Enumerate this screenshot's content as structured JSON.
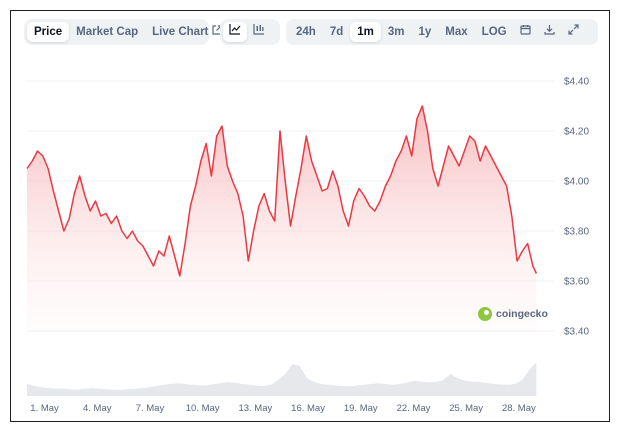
{
  "views": [
    {
      "label": "Price",
      "active": true
    },
    {
      "label": "Market Cap",
      "active": false
    },
    {
      "label": "Live Chart",
      "active": false
    }
  ],
  "chart_types": [
    {
      "name": "line-chart-icon",
      "active": true
    },
    {
      "name": "candlestick-icon",
      "active": false
    }
  ],
  "ranges": [
    {
      "label": "24h",
      "active": false
    },
    {
      "label": "7d",
      "active": false
    },
    {
      "label": "1m",
      "active": true
    },
    {
      "label": "3m",
      "active": false
    },
    {
      "label": "1y",
      "active": false
    },
    {
      "label": "Max",
      "active": false
    },
    {
      "label": "LOG",
      "active": false
    }
  ],
  "tools": [
    {
      "name": "calendar-icon"
    },
    {
      "name": "download-icon"
    },
    {
      "name": "expand-icon"
    }
  ],
  "watermark": "coingecko",
  "colors": {
    "line": "#ea3943",
    "area_top": "#f8b4b6",
    "volume": "#e6e8ec",
    "grid": "#eff2f5"
  },
  "chart_data": {
    "type": "area",
    "y_unit": "$",
    "ylim": [
      3.4,
      4.4
    ],
    "y_ticks": [
      "$4.40",
      "$4.20",
      "$4.00",
      "$3.80",
      "$3.60",
      "$3.40"
    ],
    "x_ticks": [
      "1. May",
      "4. May",
      "7. May",
      "10. May",
      "13. May",
      "16. May",
      "19. May",
      "22. May",
      "25. May",
      "28. May"
    ],
    "x_range_days": [
      0,
      30
    ],
    "series": [
      {
        "values": [
          [
            0.0,
            4.05
          ],
          [
            0.3,
            4.08
          ],
          [
            0.6,
            4.12
          ],
          [
            0.9,
            4.1
          ],
          [
            1.2,
            4.05
          ],
          [
            1.5,
            3.96
          ],
          [
            1.8,
            3.88
          ],
          [
            2.1,
            3.8
          ],
          [
            2.4,
            3.85
          ],
          [
            2.7,
            3.95
          ],
          [
            3.0,
            4.02
          ],
          [
            3.3,
            3.94
          ],
          [
            3.6,
            3.88
          ],
          [
            3.9,
            3.92
          ],
          [
            4.2,
            3.86
          ],
          [
            4.5,
            3.87
          ],
          [
            4.8,
            3.83
          ],
          [
            5.1,
            3.86
          ],
          [
            5.4,
            3.8
          ],
          [
            5.7,
            3.77
          ],
          [
            6.0,
            3.8
          ],
          [
            6.3,
            3.76
          ],
          [
            6.6,
            3.74
          ],
          [
            6.9,
            3.7
          ],
          [
            7.2,
            3.66
          ],
          [
            7.5,
            3.72
          ],
          [
            7.8,
            3.7
          ],
          [
            8.1,
            3.78
          ],
          [
            8.4,
            3.7
          ],
          [
            8.7,
            3.62
          ],
          [
            9.0,
            3.75
          ],
          [
            9.3,
            3.9
          ],
          [
            9.6,
            3.98
          ],
          [
            9.9,
            4.08
          ],
          [
            10.2,
            4.15
          ],
          [
            10.5,
            4.02
          ],
          [
            10.8,
            4.18
          ],
          [
            11.1,
            4.22
          ],
          [
            11.4,
            4.06
          ],
          [
            11.7,
            4.0
          ],
          [
            12.0,
            3.95
          ],
          [
            12.3,
            3.86
          ],
          [
            12.6,
            3.68
          ],
          [
            12.9,
            3.8
          ],
          [
            13.2,
            3.9
          ],
          [
            13.5,
            3.95
          ],
          [
            13.8,
            3.88
          ],
          [
            14.1,
            3.84
          ],
          [
            14.4,
            4.2
          ],
          [
            14.7,
            4.0
          ],
          [
            15.0,
            3.82
          ],
          [
            15.3,
            3.94
          ],
          [
            15.6,
            4.05
          ],
          [
            15.9,
            4.18
          ],
          [
            16.2,
            4.08
          ],
          [
            16.5,
            4.02
          ],
          [
            16.8,
            3.96
          ],
          [
            17.1,
            3.97
          ],
          [
            17.4,
            4.04
          ],
          [
            17.7,
            3.98
          ],
          [
            18.0,
            3.88
          ],
          [
            18.3,
            3.82
          ],
          [
            18.6,
            3.92
          ],
          [
            18.9,
            3.97
          ],
          [
            19.2,
            3.94
          ],
          [
            19.5,
            3.9
          ],
          [
            19.8,
            3.88
          ],
          [
            20.1,
            3.92
          ],
          [
            20.4,
            3.98
          ],
          [
            20.7,
            4.02
          ],
          [
            21.0,
            4.08
          ],
          [
            21.3,
            4.12
          ],
          [
            21.6,
            4.18
          ],
          [
            21.9,
            4.1
          ],
          [
            22.2,
            4.25
          ],
          [
            22.5,
            4.3
          ],
          [
            22.8,
            4.2
          ],
          [
            23.1,
            4.05
          ],
          [
            23.4,
            3.98
          ],
          [
            23.7,
            4.06
          ],
          [
            24.0,
            4.14
          ],
          [
            24.3,
            4.1
          ],
          [
            24.6,
            4.06
          ],
          [
            24.9,
            4.12
          ],
          [
            25.2,
            4.18
          ],
          [
            25.5,
            4.16
          ],
          [
            25.8,
            4.08
          ],
          [
            26.1,
            4.14
          ],
          [
            26.4,
            4.1
          ],
          [
            26.7,
            4.06
          ],
          [
            27.0,
            4.02
          ],
          [
            27.3,
            3.98
          ],
          [
            27.6,
            3.86
          ],
          [
            27.9,
            3.68
          ],
          [
            28.2,
            3.72
          ],
          [
            28.5,
            3.75
          ],
          [
            28.8,
            3.66
          ],
          [
            29.0,
            3.63
          ]
        ]
      }
    ],
    "volume": [
      0.3,
      0.25,
      0.22,
      0.2,
      0.18,
      0.19,
      0.17,
      0.16,
      0.18,
      0.2,
      0.18,
      0.17,
      0.16,
      0.15,
      0.17,
      0.18,
      0.2,
      0.22,
      0.25,
      0.28,
      0.3,
      0.32,
      0.3,
      0.28,
      0.27,
      0.26,
      0.3,
      0.32,
      0.35,
      0.33,
      0.3,
      0.28,
      0.26,
      0.25,
      0.28,
      0.4,
      0.55,
      0.8,
      0.75,
      0.45,
      0.35,
      0.3,
      0.28,
      0.26,
      0.25,
      0.24,
      0.26,
      0.28,
      0.3,
      0.32,
      0.3,
      0.28,
      0.3,
      0.34,
      0.38,
      0.36,
      0.34,
      0.35,
      0.4,
      0.55,
      0.45,
      0.38,
      0.36,
      0.35,
      0.33,
      0.3,
      0.29,
      0.28,
      0.3,
      0.4,
      0.65,
      0.85
    ]
  }
}
